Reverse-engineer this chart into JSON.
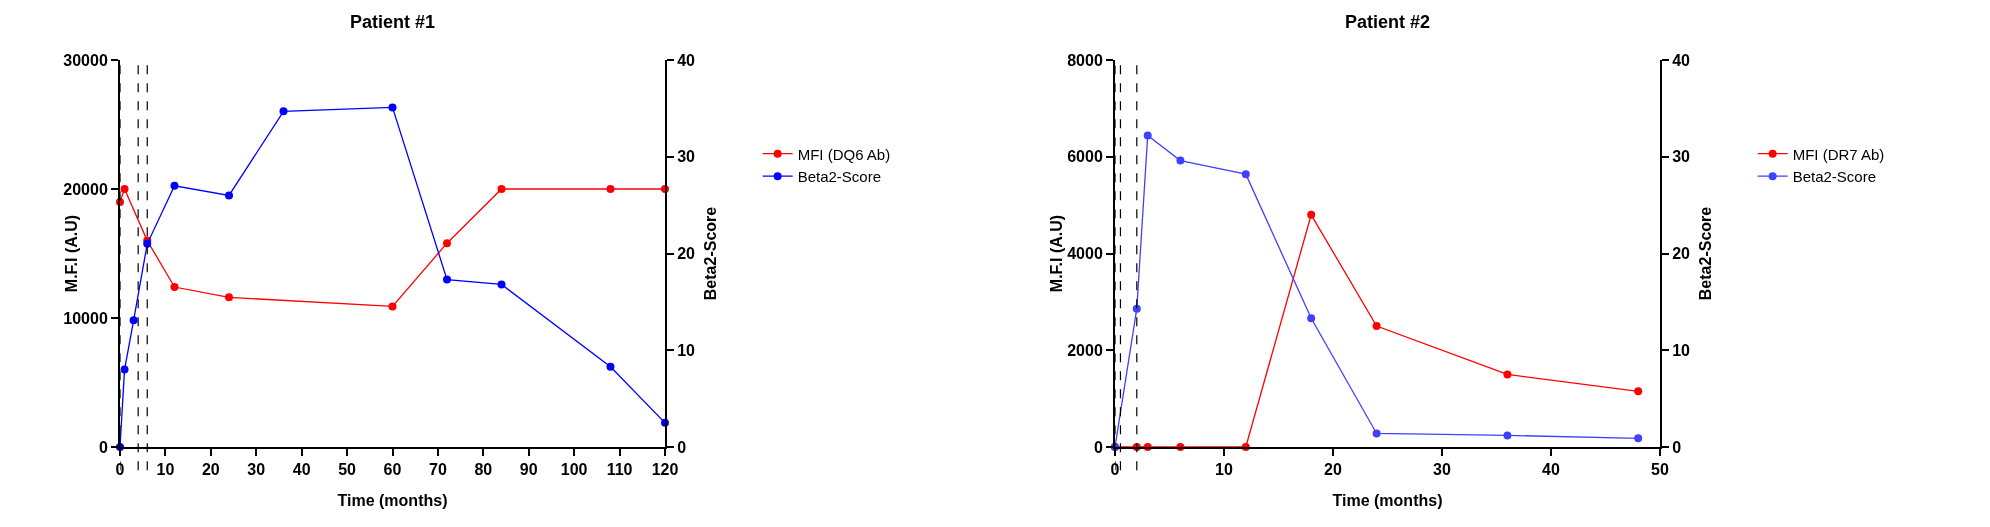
{
  "chart_data": [
    {
      "type": "line",
      "title": "Patient #1",
      "xlabel": "Time (months)",
      "ylabel": "M.F.I (A.U)",
      "y2label": "Beta2-Score",
      "xlim": [
        0,
        120
      ],
      "xticks": [
        0,
        10,
        20,
        30,
        40,
        50,
        60,
        70,
        80,
        90,
        100,
        110,
        120
      ],
      "ylim": [
        0,
        30000
      ],
      "yticks": [
        0,
        10000,
        20000,
        30000
      ],
      "y2lim": [
        0,
        40
      ],
      "y2ticks": [
        0,
        10,
        20,
        30,
        40
      ],
      "grid": false,
      "legend": "right",
      "marker": "circle",
      "line_style": "solid",
      "series": [
        {
          "name": "MFI (DQ6 Ab)",
          "color": "#ff0000",
          "x": [
            0,
            1,
            6,
            12,
            24,
            60,
            72,
            84,
            108,
            120
          ],
          "values": [
            19000,
            20000,
            16000,
            12400,
            11600,
            10900,
            15800,
            20000,
            20000,
            20000
          ]
        },
        {
          "name": "Beta2-Score",
          "color": "#0000ff",
          "axis": "y2",
          "x": [
            0,
            1,
            3,
            6,
            12,
            24,
            36,
            60,
            72,
            84,
            108,
            120
          ],
          "values": [
            0,
            8,
            13.1,
            21,
            27,
            26,
            34.7,
            35.1,
            17.3,
            16.8,
            8.3,
            2.5
          ]
        }
      ],
      "ref_lines": [
        {
          "axis": "x",
          "value": 0,
          "color": "#000000",
          "line_style": "dashed"
        },
        {
          "axis": "x",
          "value": 4,
          "color": "#000000",
          "line_style": "dashed"
        },
        {
          "axis": "x",
          "value": 6,
          "color": "#000000",
          "line_style": "dashed"
        }
      ]
    },
    {
      "type": "line",
      "title": "Patient #2",
      "xlabel": "Time (months)",
      "ylabel": "M.F.I (A.U)",
      "y2label": "Beta2-Score",
      "xlim": [
        0,
        50
      ],
      "xticks": [
        0,
        10,
        20,
        30,
        40,
        50
      ],
      "ylim": [
        0,
        8000
      ],
      "yticks": [
        0,
        2000,
        4000,
        6000,
        8000
      ],
      "y2lim": [
        0,
        40
      ],
      "y2ticks": [
        0,
        10,
        20,
        30,
        40
      ],
      "grid": false,
      "legend": "right",
      "marker": "circle",
      "line_style": "solid",
      "series": [
        {
          "name": "MFI (DR7 Ab)",
          "color": "#ff0000",
          "x": [
            0,
            2,
            3,
            6,
            12,
            18,
            24,
            36,
            48
          ],
          "values": [
            0,
            0,
            0,
            0,
            0,
            4800,
            2500,
            1500,
            1150
          ]
        },
        {
          "name": "Beta2-Score",
          "color": "#4040ff",
          "axis": "y2",
          "x": [
            0,
            2,
            3,
            6,
            12,
            18,
            24,
            36,
            48
          ],
          "values": [
            0,
            14.3,
            32.2,
            29.6,
            28.2,
            13.3,
            1.4,
            1.2,
            0.9
          ]
        }
      ],
      "ref_lines": [
        {
          "axis": "x",
          "value": 0,
          "color": "#000000",
          "line_style": "dashed"
        },
        {
          "axis": "x",
          "value": 0.5,
          "color": "#000000",
          "line_style": "dashed"
        },
        {
          "axis": "x",
          "value": 2,
          "color": "#000000",
          "line_style": "dashed"
        }
      ]
    }
  ]
}
